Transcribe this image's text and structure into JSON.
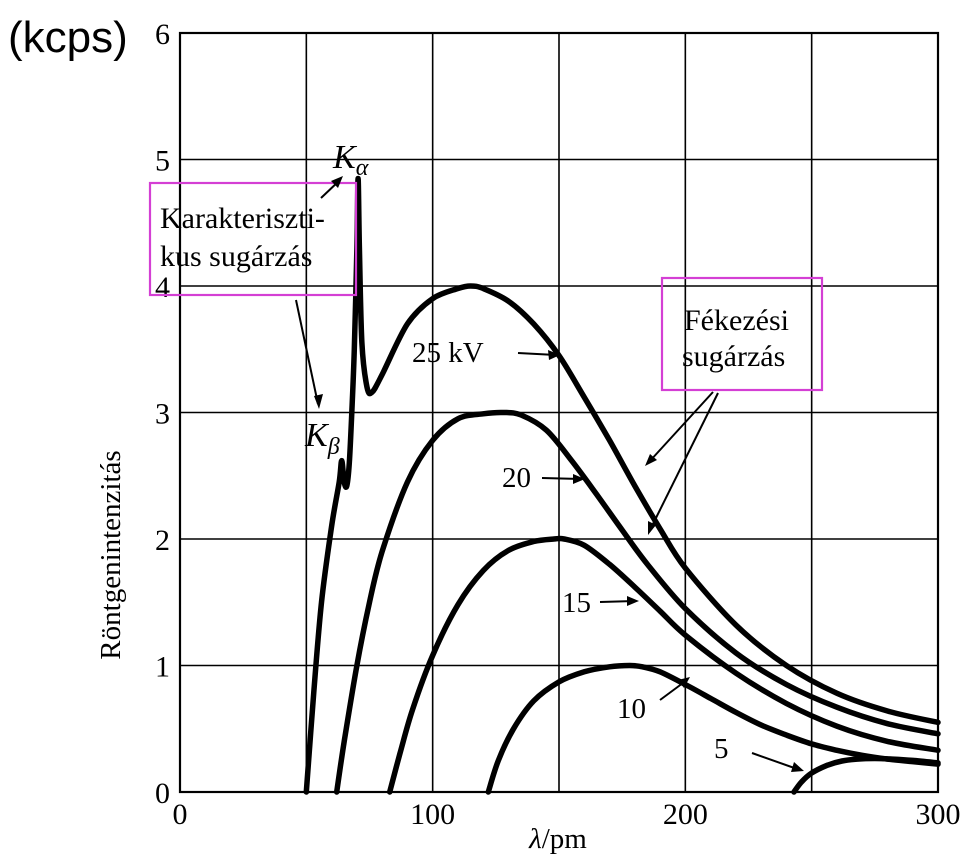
{
  "chart_data": {
    "type": "line",
    "unit_label": "(kcps)",
    "xlabel_var": "λ",
    "xlabel_unit": "/pm",
    "ylabel": "Röntgenintenzitás",
    "xlim": [
      0,
      300
    ],
    "ylim": [
      0,
      6
    ],
    "x_ticks": [
      0,
      100,
      200,
      300
    ],
    "y_ticks": [
      0,
      1,
      2,
      3,
      4,
      5,
      6
    ],
    "grid": true,
    "series": [
      {
        "name": "25 kV",
        "label": "25 kV",
        "x": [
          50,
          53,
          56,
          60,
          63,
          64,
          65,
          66,
          67,
          68,
          69,
          70,
          70.5,
          71,
          72,
          74,
          76,
          80,
          90,
          100,
          110,
          115,
          120,
          130,
          140,
          150,
          160,
          170,
          180,
          190,
          200,
          220,
          240,
          260,
          280,
          300
        ],
        "y": [
          0,
          0.8,
          1.5,
          2.1,
          2.45,
          2.62,
          2.45,
          2.42,
          2.6,
          3.0,
          3.5,
          4.3,
          4.85,
          4.3,
          3.55,
          3.2,
          3.16,
          3.3,
          3.7,
          3.9,
          3.98,
          4.0,
          3.98,
          3.88,
          3.7,
          3.45,
          3.12,
          2.78,
          2.42,
          2.08,
          1.77,
          1.32,
          1.0,
          0.78,
          0.64,
          0.55
        ]
      },
      {
        "name": "20",
        "label": "20",
        "x": [
          62,
          65,
          70,
          75,
          80,
          90,
          100,
          110,
          120,
          128,
          135,
          145,
          155,
          165,
          175,
          185,
          200,
          220,
          240,
          260,
          280,
          300
        ],
        "y": [
          0,
          0.4,
          1.0,
          1.5,
          1.9,
          2.45,
          2.78,
          2.95,
          2.99,
          3.0,
          2.98,
          2.86,
          2.62,
          2.35,
          2.07,
          1.8,
          1.45,
          1.1,
          0.85,
          0.67,
          0.54,
          0.46
        ]
      },
      {
        "name": "15",
        "label": "15",
        "x": [
          83,
          87,
          92,
          100,
          110,
          120,
          130,
          140,
          148,
          152,
          160,
          170,
          180,
          190,
          200,
          220,
          240,
          260,
          280,
          300
        ],
        "y": [
          0,
          0.3,
          0.65,
          1.08,
          1.48,
          1.75,
          1.91,
          1.98,
          2.0,
          2.0,
          1.95,
          1.8,
          1.62,
          1.43,
          1.24,
          0.94,
          0.7,
          0.52,
          0.4,
          0.33
        ]
      },
      {
        "name": "10",
        "label": "10",
        "x": [
          122,
          126,
          132,
          140,
          150,
          160,
          170,
          178,
          183,
          190,
          200,
          210,
          220,
          230,
          240,
          250,
          260,
          270,
          280,
          290,
          300
        ],
        "y": [
          0,
          0.25,
          0.5,
          0.72,
          0.87,
          0.95,
          0.99,
          1.0,
          0.99,
          0.95,
          0.85,
          0.74,
          0.63,
          0.53,
          0.45,
          0.38,
          0.33,
          0.29,
          0.26,
          0.24,
          0.22
        ]
      },
      {
        "name": "5",
        "label": "5",
        "x": [
          243,
          246,
          250,
          256,
          262,
          268,
          275,
          282,
          290,
          300
        ],
        "y": [
          0,
          0.08,
          0.15,
          0.21,
          0.245,
          0.26,
          0.265,
          0.26,
          0.25,
          0.23
        ]
      }
    ],
    "annotations": {
      "k_alpha_main": "K",
      "k_alpha_sub": "α",
      "k_beta_main": "K",
      "k_beta_sub": "β",
      "characteristic_line1": "Karakteriszti-",
      "characteristic_line2": "kus sugárzás",
      "brems_line1": "Fékezési",
      "brems_line2": "sugárzás"
    },
    "colors": {
      "curve": "#000000",
      "highlight_box": "#d43fd4"
    }
  }
}
